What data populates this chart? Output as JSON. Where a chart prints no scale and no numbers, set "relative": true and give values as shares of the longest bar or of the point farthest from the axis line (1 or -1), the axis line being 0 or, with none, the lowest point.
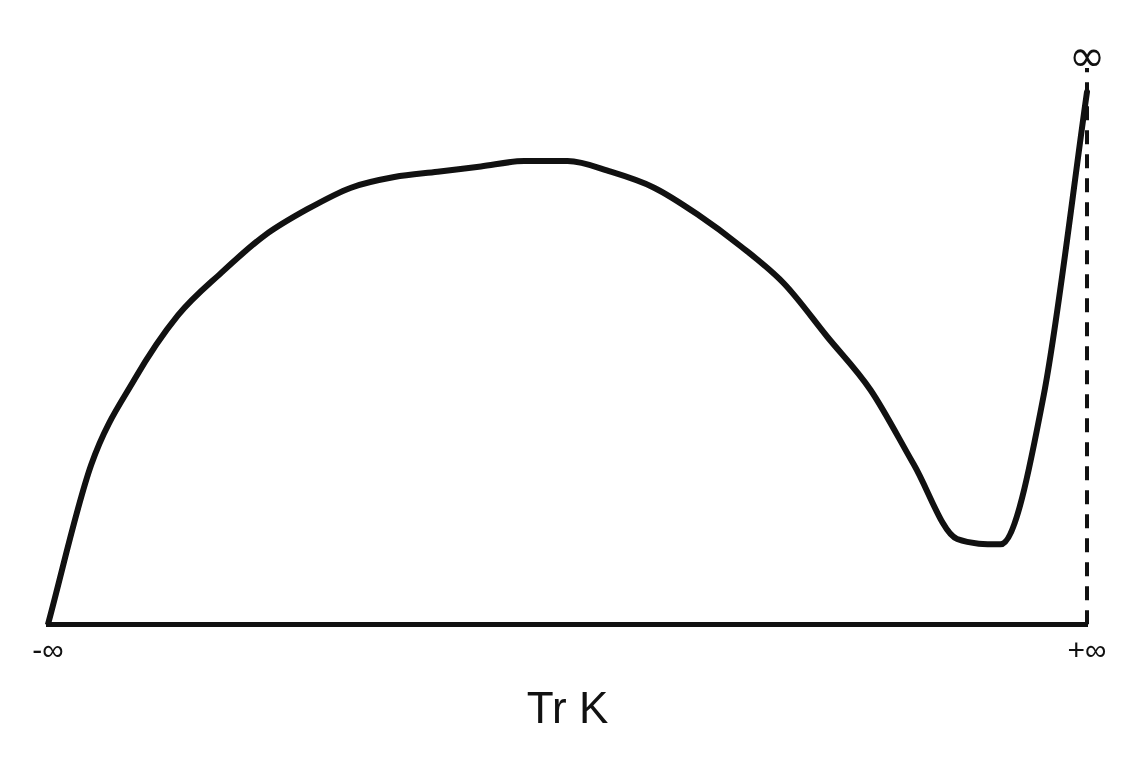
{
  "chart_data": {
    "type": "line",
    "relative": true,
    "xlabel": "Tr K",
    "categories": [
      "-∞",
      null,
      null,
      null,
      null,
      null,
      null,
      null,
      null,
      null,
      null,
      null,
      null,
      null,
      null,
      null,
      null,
      null,
      null,
      null,
      null,
      null,
      null,
      null,
      "+∞"
    ],
    "series": [
      {
        "color": "#111111",
        "values": [
          0,
          0.3,
          0.46,
          0.58,
          0.66,
          0.73,
          0.78,
          0.82,
          0.84,
          0.85,
          0.86,
          0.87,
          0.87,
          0.85,
          0.82,
          0.77,
          0.71,
          0.64,
          0.54,
          0.44,
          0.3,
          0.16,
          0.15,
          0.43,
          1
        ]
      }
    ],
    "ref_lines": [
      {
        "axis": "x",
        "value": "+∞",
        "line_style": "dashed",
        "color": "#111111"
      }
    ],
    "annotations": [
      {
        "text": "∞",
        "x": "+∞",
        "y": 1
      }
    ],
    "grid": false,
    "legend": false,
    "marker": "none",
    "line_style": "solid"
  }
}
